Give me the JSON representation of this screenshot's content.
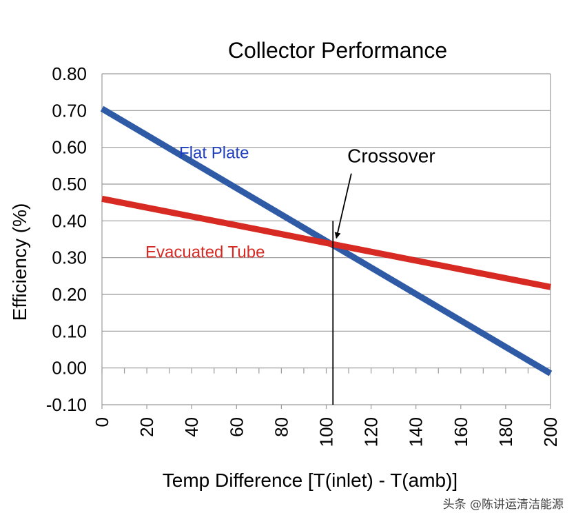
{
  "chart_data": {
    "type": "line",
    "title": "Collector Performance",
    "xlabel": "Temp Difference [T(inlet) - T(amb)]",
    "ylabel": "Efficiency (%)",
    "xlim": [
      0,
      200
    ],
    "ylim": [
      -0.1,
      0.8
    ],
    "x_ticks": [
      0,
      20,
      40,
      60,
      80,
      100,
      120,
      140,
      160,
      180,
      200
    ],
    "x_tick_labels": [
      "0",
      "20",
      "40",
      "60",
      "80",
      "100",
      "120",
      "140",
      "160",
      "180",
      "200"
    ],
    "x_minor_step": 10,
    "y_ticks": [
      -0.1,
      0.0,
      0.1,
      0.2,
      0.3,
      0.4,
      0.5,
      0.6,
      0.7,
      0.8
    ],
    "y_tick_labels": [
      "-0.10",
      "0.00",
      "0.10",
      "0.20",
      "0.30",
      "0.40",
      "0.50",
      "0.60",
      "0.70",
      "0.80"
    ],
    "grid": true,
    "series": [
      {
        "name": "Flat Plate",
        "color": "#2f5ba6",
        "x": [
          0,
          200
        ],
        "y": [
          0.705,
          -0.015
        ]
      },
      {
        "name": "Evacuated Tube",
        "color": "#d62a23",
        "x": [
          0,
          200
        ],
        "y": [
          0.46,
          0.22
        ]
      }
    ],
    "series_labels": [
      {
        "text": "Flat Plate",
        "color": "#1f3fbf",
        "x": 50,
        "y": 0.57
      },
      {
        "text": "Evacuated Tube",
        "color": "#d62a23",
        "x": 46,
        "y": 0.3
      }
    ],
    "crossover": {
      "text": "Crossover",
      "x": 103,
      "y": 0.34,
      "line_y_top": 0.4,
      "label_x": 129,
      "label_y": 0.555
    }
  },
  "watermark": "头条 @陈讲运清洁能源"
}
